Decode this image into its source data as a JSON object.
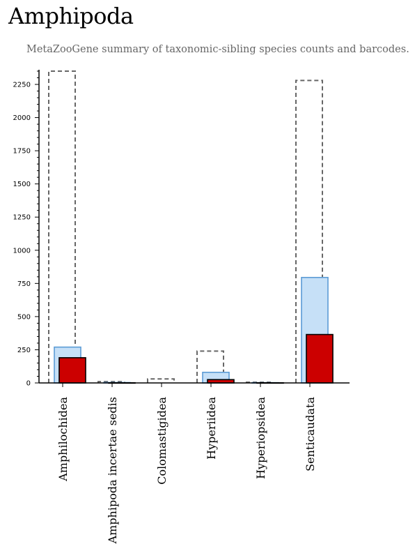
{
  "page": {
    "title": "Amphipoda",
    "subtitle": "MetaZooGene summary of taxonomic-sibling species counts and barcodes."
  },
  "colors": {
    "outline_dash": "#666666",
    "light_fill": "#c6e0f7",
    "light_stroke": "#5b9bd5",
    "dark_fill": "#cc0000",
    "dark_stroke": "#000000",
    "axis": "#000000"
  },
  "chart_data": {
    "type": "bar",
    "categories": [
      "Amphilochidea",
      "Amphipoda incertae sedis",
      "Colomastigidea",
      "Hyperiidea",
      "Hyperiopsidea",
      "Senticaudata"
    ],
    "series": [
      {
        "values": [
          2350,
          10,
          30,
          240,
          5,
          2280
        ],
        "style": "dashed-outline"
      },
      {
        "values": [
          270,
          3,
          0,
          80,
          2,
          795
        ],
        "style": "light-blue"
      },
      {
        "values": [
          190,
          1,
          0,
          25,
          1,
          365
        ],
        "style": "red"
      }
    ],
    "yticks": [
      0,
      250,
      500,
      750,
      1000,
      1250,
      1500,
      1750,
      2000,
      2250
    ],
    "ylim": [
      0,
      2350
    ],
    "grid": false
  }
}
